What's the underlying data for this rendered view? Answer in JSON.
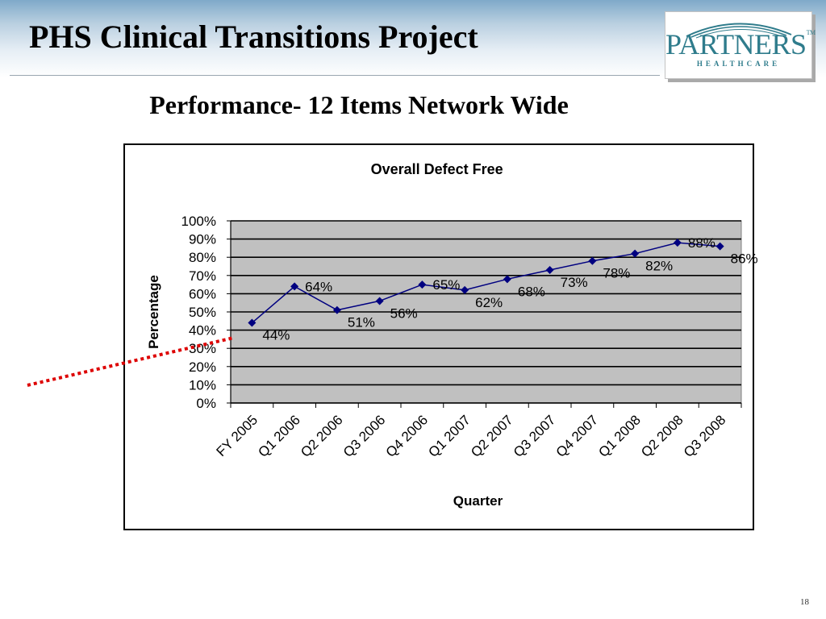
{
  "slide": {
    "title": "PHS Clinical Transitions Project",
    "subtitle": "Performance- 12 Items Network Wide",
    "page_number": "18"
  },
  "logo": {
    "name": "PARTNERS",
    "tm": "TM",
    "sub": "HEALTHCARE"
  },
  "colors": {
    "series": "#000080",
    "plot_bg": "#c0c0c0",
    "trend_line": "#dd0000"
  },
  "chart_data": {
    "type": "line",
    "title": "Overall Defect Free",
    "xlabel": "Quarter",
    "ylabel": "Percentage",
    "categories": [
      "FY 2005",
      "Q1 2006",
      "Q2 2006",
      "Q3 2006",
      "Q4 2006",
      "Q1 2007",
      "Q2 2007",
      "Q3 2007",
      "Q4 2007",
      "Q1 2008",
      "Q2 2008",
      "Q3 2008"
    ],
    "series": [
      {
        "values": [
          44,
          64,
          51,
          56,
          65,
          62,
          68,
          73,
          78,
          82,
          88,
          86
        ],
        "data_labels": [
          "44%",
          "64%",
          "51%",
          "56%",
          "65%",
          "62%",
          "68%",
          "73%",
          "78%",
          "82%",
          "88%",
          "86%"
        ]
      }
    ],
    "ylim": [
      0,
      100
    ],
    "y_ticks": [
      "0%",
      "10%",
      "20%",
      "30%",
      "40%",
      "50%",
      "60%",
      "70%",
      "80%",
      "90%",
      "100%"
    ],
    "grid": true,
    "legend": "none"
  }
}
